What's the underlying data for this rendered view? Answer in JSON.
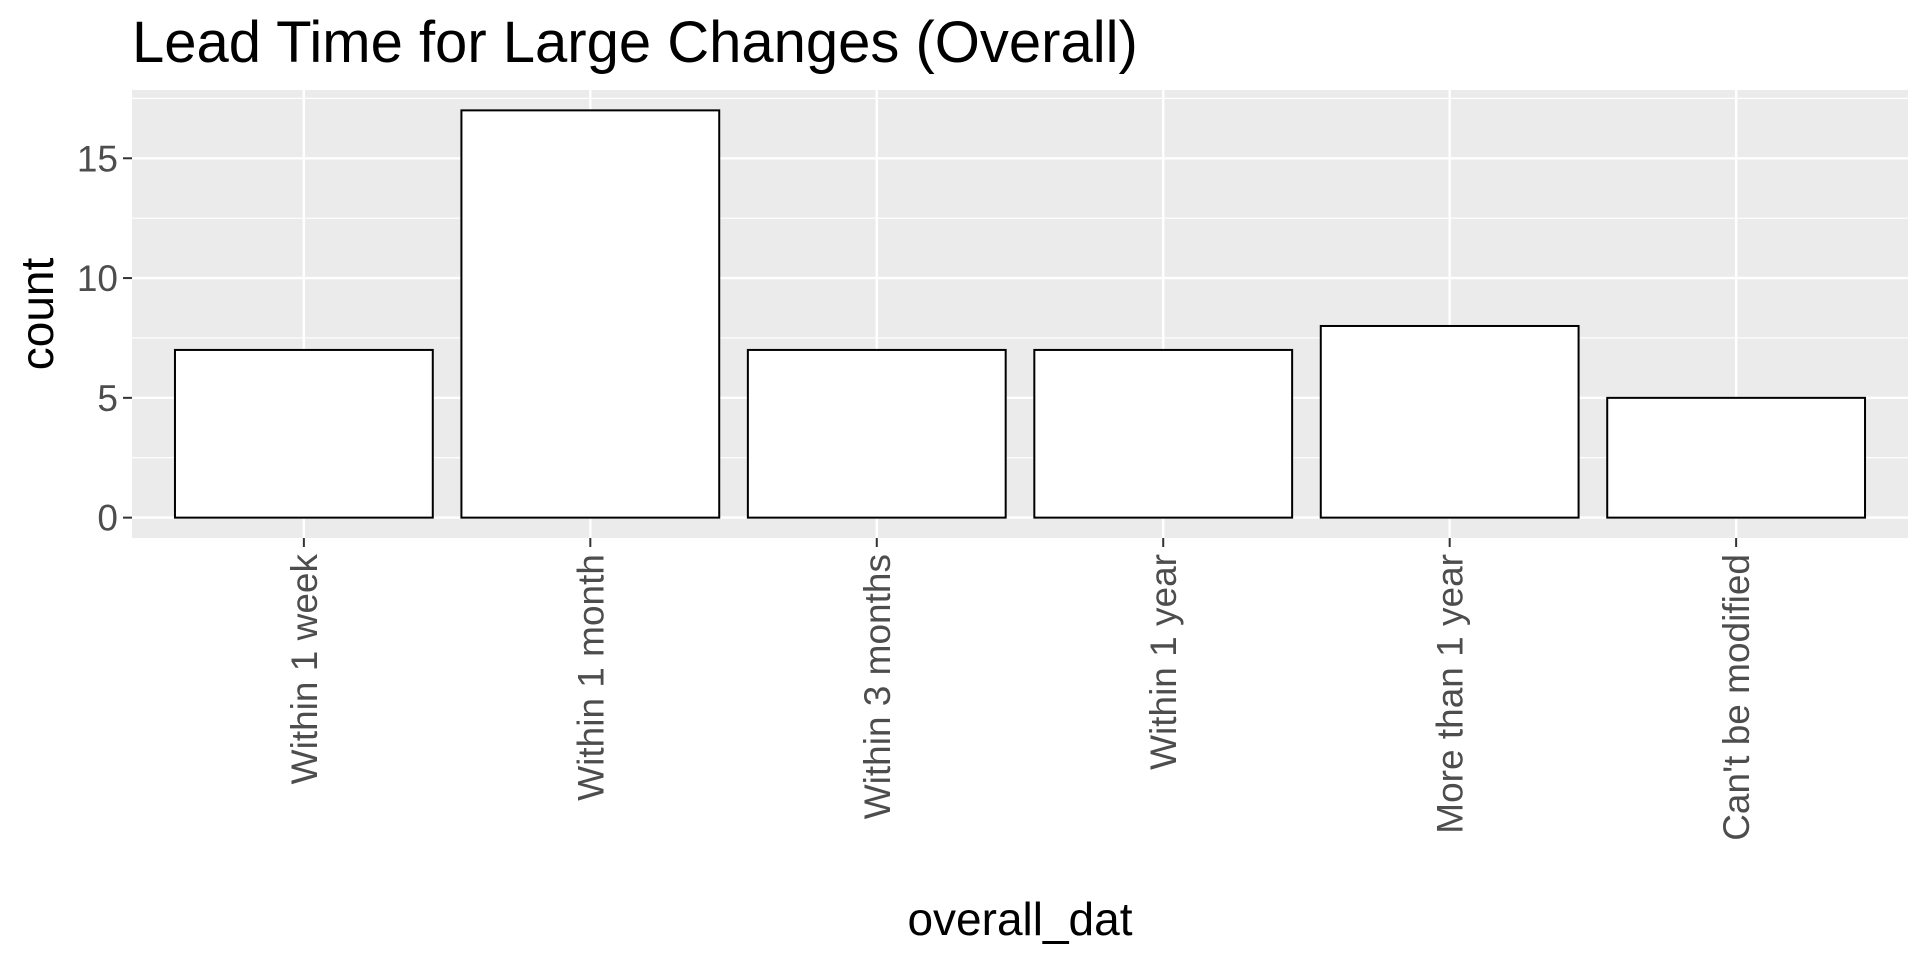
{
  "chart_data": {
    "type": "bar",
    "title": "Lead Time for Large Changes (Overall)",
    "xlabel": "overall_dat",
    "ylabel": "count",
    "categories": [
      "Within 1 week",
      "Within 1 month",
      "Within 3 months",
      "Within 1 year",
      "More than 1 year",
      "Can't be modified"
    ],
    "values": [
      7,
      17,
      7,
      7,
      8,
      5
    ],
    "yticks": [
      0,
      5,
      10,
      15
    ],
    "ylim": [
      -0.85,
      17.85
    ],
    "grid": true,
    "colors": {
      "panel": "#ebebeb",
      "grid": "#ffffff",
      "bar_fill": "#ffffff",
      "bar_stroke": "#000000",
      "tick_mark": "#333333"
    }
  }
}
